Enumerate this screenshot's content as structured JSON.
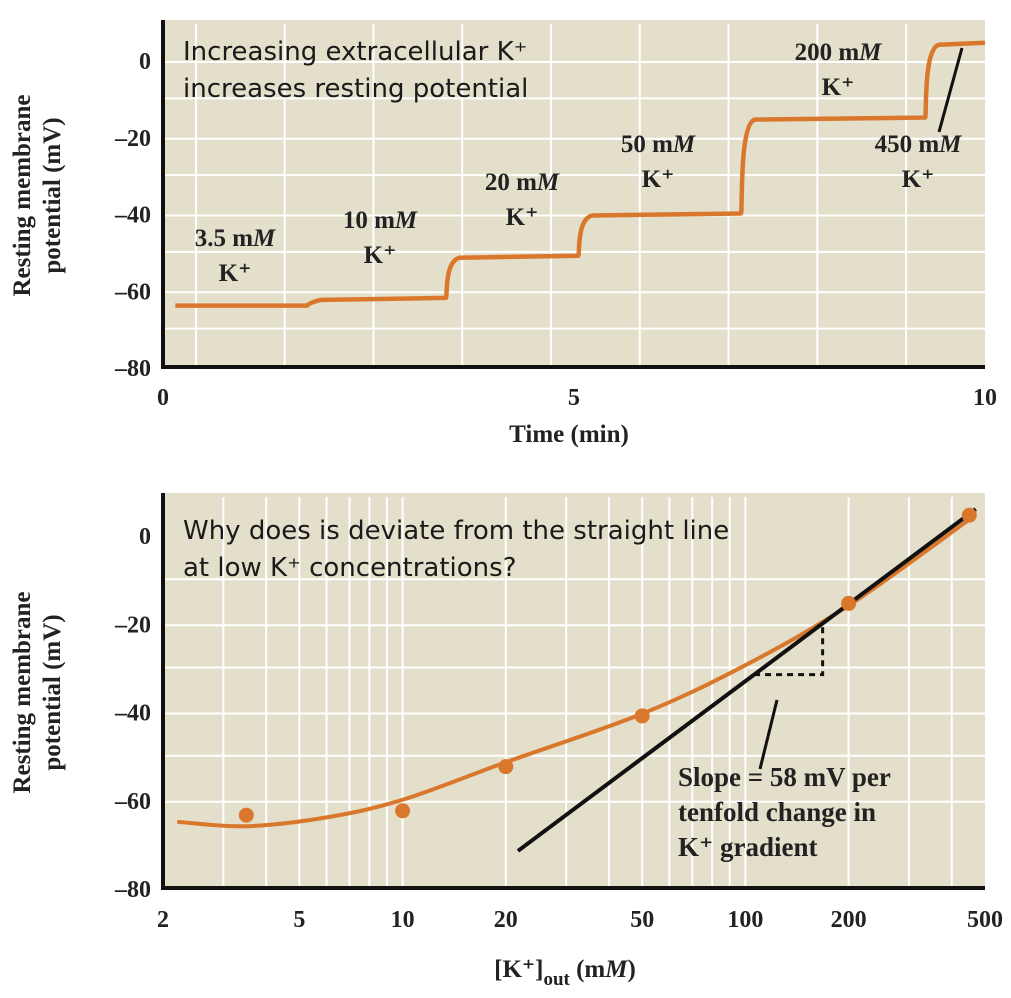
{
  "colors": {
    "plot_bg": "#e3dfca",
    "grid": "#ffffff",
    "trace": "#d9782c",
    "line": "#111111"
  },
  "chart_data": [
    {
      "type": "line",
      "annotation": [
        "Increasing extracellular K⁺",
        "increases resting potential"
      ],
      "xlabel": "Time (min)",
      "ylabel": [
        "Resting membrane",
        "potential (mV)"
      ],
      "xlim": [
        0,
        10
      ],
      "ylim": [
        -80,
        8
      ],
      "xticks": [
        0,
        5,
        10
      ],
      "yticks": [
        0,
        -20,
        -40,
        -60,
        -80
      ],
      "ytick_labels": [
        "0",
        "–20",
        "–40",
        "–60",
        "–80"
      ],
      "grid": true,
      "steps": [
        {
          "label": "3.5 mM",
          "sub": "K⁺",
          "start": 0.15,
          "end": 1.75,
          "value": -64
        },
        {
          "label": "10 mM",
          "sub": "K⁺",
          "start": 1.75,
          "end": 3.44,
          "value": -62
        },
        {
          "label": "20 mM",
          "sub": "K⁺",
          "start": 3.44,
          "end": 5.05,
          "value": -51
        },
        {
          "label": "50 mM",
          "sub": "K⁺",
          "start": 5.05,
          "end": 7.03,
          "value": -40
        },
        {
          "label": "200 mM",
          "sub": "K⁺",
          "start": 7.03,
          "end": 9.27,
          "value": -15
        },
        {
          "label": "450 mM",
          "sub": "K⁺",
          "start": 9.27,
          "end": 10,
          "value": 4.5
        }
      ]
    },
    {
      "type": "scatter",
      "scale_x": "log",
      "annotation": [
        "Why does is deviate from the straight line",
        "at low K⁺ concentrations?"
      ],
      "xlabel": "[K⁺]out (mM)",
      "ylabel": [
        "Resting membrane",
        "potential (mV)"
      ],
      "xlim": [
        2,
        500
      ],
      "ylim": [
        -80,
        8
      ],
      "xticks": [
        2,
        5,
        10,
        20,
        50,
        100,
        200,
        500
      ],
      "yticks": [
        0,
        -20,
        -40,
        -60,
        -80
      ],
      "ytick_labels": [
        "0",
        "–20",
        "–40",
        "–60",
        "–80"
      ],
      "grid": true,
      "points": [
        {
          "x": 3.5,
          "y": -63.5
        },
        {
          "x": 10,
          "y": -62.5
        },
        {
          "x": 20,
          "y": -52.5
        },
        {
          "x": 50,
          "y": -41
        },
        {
          "x": 200,
          "y": -15.5
        },
        {
          "x": 450,
          "y": 4.5
        }
      ],
      "fit_curve": [
        [
          2.2,
          -65
        ],
        [
          3.5,
          -66
        ],
        [
          6,
          -64
        ],
        [
          10,
          -60
        ],
        [
          20,
          -51.5
        ],
        [
          50,
          -40.5
        ],
        [
          100,
          -29.5
        ],
        [
          200,
          -16
        ],
        [
          450,
          3.5
        ]
      ],
      "nernst_line": {
        "x": [
          21.7,
          470
        ],
        "slope_mV_per_decade": 58,
        "y_at_start": -71.6
      },
      "slope_annotation": [
        "Slope = 58 mV per",
        "tenfold change in",
        "K⁺ gradient"
      ]
    }
  ]
}
